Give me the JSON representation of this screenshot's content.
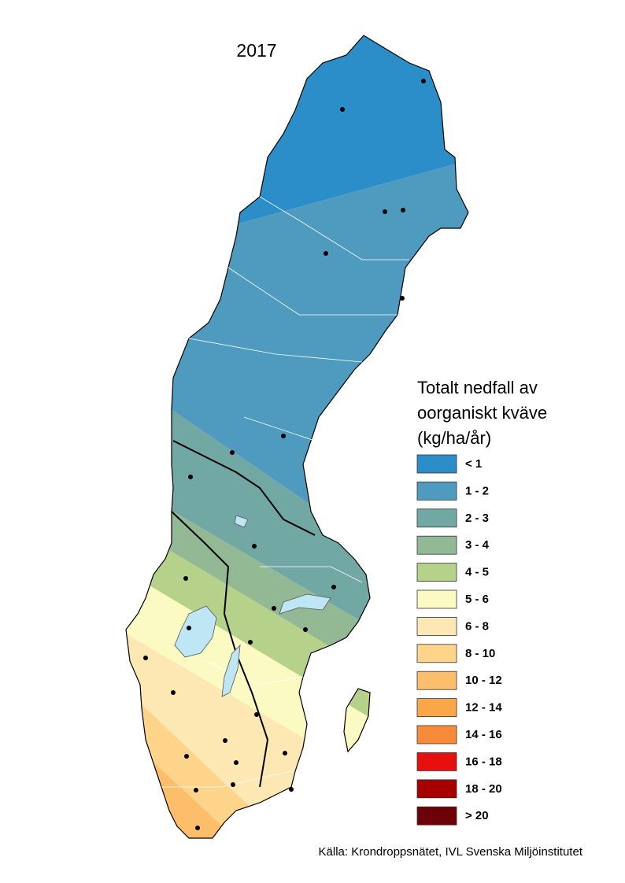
{
  "title": "2017",
  "legend": {
    "title": [
      "Totalt nedfall av",
      "oorganiskt kväve",
      "(kg/ha/år)"
    ],
    "items": [
      {
        "label": "< 1",
        "color": "#2b8ec8"
      },
      {
        "label": "1 - 2",
        "color": "#4f9bbf"
      },
      {
        "label": "2 - 3",
        "color": "#72a8a4"
      },
      {
        "label": "3 - 4",
        "color": "#93b894"
      },
      {
        "label": "4 - 5",
        "color": "#b6d18a"
      },
      {
        "label": "5 - 6",
        "color": "#fafac2"
      },
      {
        "label": "6 - 8",
        "color": "#fde7b3"
      },
      {
        "label": "8 - 10",
        "color": "#fed38a"
      },
      {
        "label": "10 - 12",
        "color": "#fdbe6c"
      },
      {
        "label": "12 - 14",
        "color": "#fca64a"
      },
      {
        "label": "14 - 16",
        "color": "#f88b3a"
      },
      {
        "label": "16 - 18",
        "color": "#e8100e"
      },
      {
        "label": "18 - 20",
        "color": "#a80000"
      },
      {
        "label": "> 20",
        "color": "#6b0008"
      }
    ]
  },
  "source": "Källa: Krondroppsnätet, IVL Svenska Miljöinstitutet"
}
